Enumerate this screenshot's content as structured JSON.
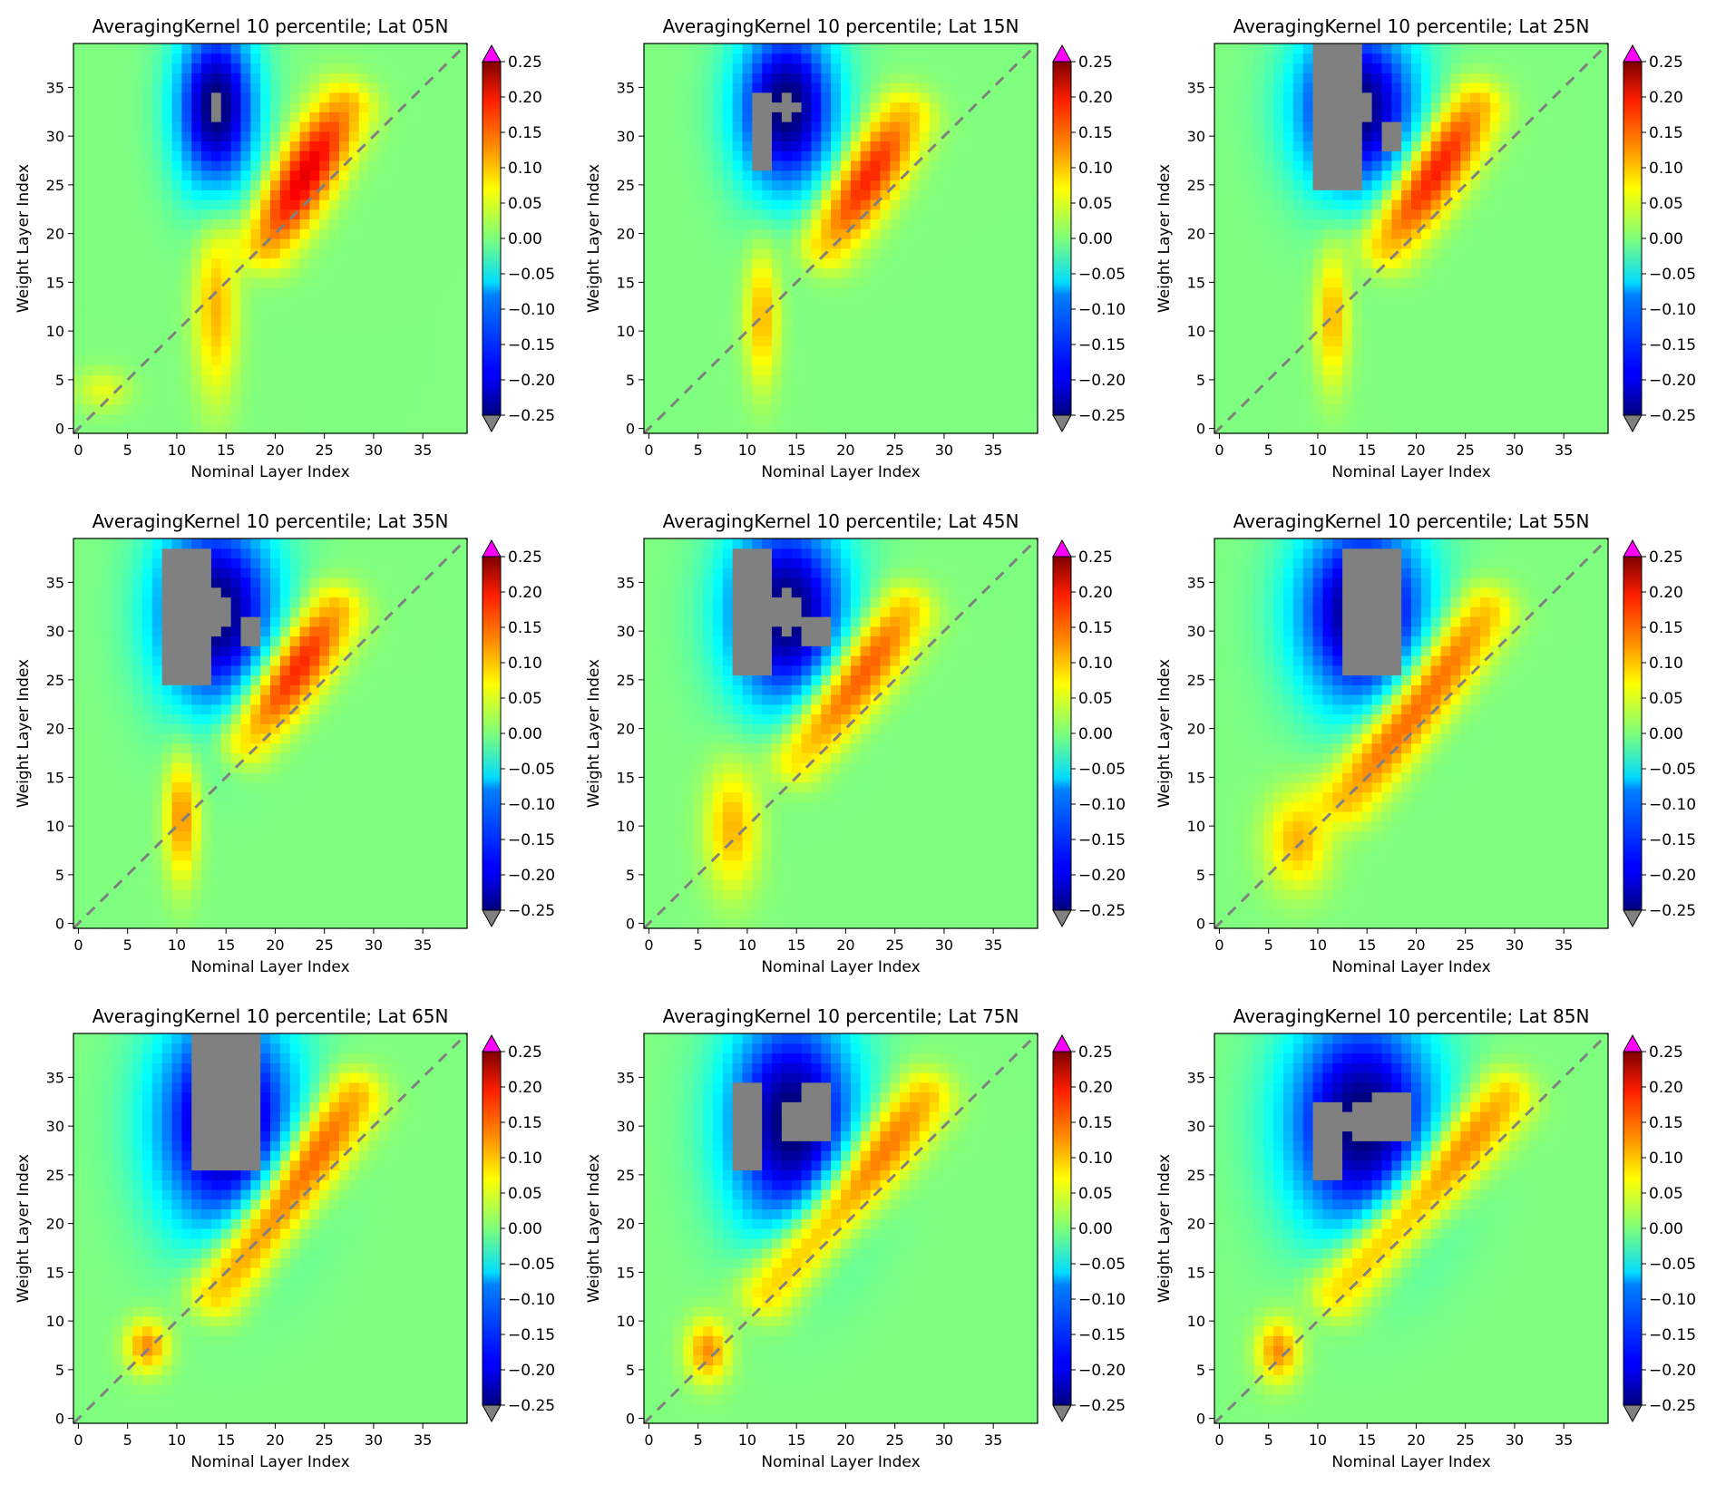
{
  "chart_data": [
    {
      "type": "heatmap",
      "title": "AveragingKernel 10 percentile; Lat 05N",
      "xlabel": "Nominal Layer Index",
      "ylabel": "Weight Layer Index",
      "x_range": [
        0,
        39
      ],
      "y_range": [
        0,
        39
      ],
      "xticks": [
        0,
        5,
        10,
        15,
        20,
        25,
        30,
        35
      ],
      "yticks": [
        0,
        5,
        10,
        15,
        20,
        25,
        30,
        35
      ],
      "colorbar": {
        "range": [
          -0.25,
          0.25
        ],
        "ticks": [
          "0.25",
          "0.20",
          "0.15",
          "0.10",
          "0.05",
          "0.00",
          "−0.05",
          "−0.10",
          "−0.15",
          "−0.20",
          "−0.25"
        ],
        "colormap": "jet",
        "over_color": "#ff00ff",
        "under_color": "#808080"
      },
      "diagonal_reference": "dashed gray y = x",
      "features": [
        {
          "kind": "positive_band",
          "x": [
            19,
            27
          ],
          "y": [
            19,
            33
          ],
          "peak": 0.2
        },
        {
          "kind": "positive_blob",
          "x": [
            12,
            16
          ],
          "y": [
            4,
            21
          ],
          "peak": 0.1
        },
        {
          "kind": "positive_blob",
          "x": [
            0,
            5
          ],
          "y": [
            2,
            6
          ],
          "peak": 0.05
        },
        {
          "kind": "negative_region",
          "x": [
            10,
            18
          ],
          "y": [
            23,
            39
          ],
          "min": -0.25
        }
      ]
    },
    {
      "type": "heatmap",
      "title": "AveragingKernel 10 percentile; Lat 15N",
      "xlabel": "Nominal Layer Index",
      "ylabel": "Weight Layer Index",
      "x_range": [
        0,
        39
      ],
      "y_range": [
        0,
        39
      ],
      "xticks": [
        0,
        5,
        10,
        15,
        20,
        25,
        30,
        35
      ],
      "yticks": [
        0,
        5,
        10,
        15,
        20,
        25,
        30,
        35
      ],
      "colorbar": {
        "range": [
          -0.25,
          0.25
        ],
        "ticks": [
          "0.25",
          "0.20",
          "0.15",
          "0.10",
          "0.05",
          "0.00",
          "−0.05",
          "−0.10",
          "−0.15",
          "−0.20",
          "−0.25"
        ],
        "colormap": "jet",
        "over_color": "#ff00ff",
        "under_color": "#808080"
      },
      "diagonal_reference": "dashed gray y = x",
      "features": [
        {
          "kind": "positive_band",
          "x": [
            18,
            26
          ],
          "y": [
            19,
            32
          ],
          "peak": 0.18
        },
        {
          "kind": "positive_blob",
          "x": [
            10,
            13
          ],
          "y": [
            5,
            18
          ],
          "peak": 0.1
        },
        {
          "kind": "negative_region",
          "x": [
            9,
            19
          ],
          "y": [
            23,
            39
          ],
          "min": -0.25
        },
        {
          "kind": "out_of_range_low",
          "x": [
            11,
            12
          ],
          "y": [
            27,
            34
          ]
        }
      ]
    },
    {
      "type": "heatmap",
      "title": "AveragingKernel 10 percentile; Lat 25N",
      "xlabel": "Nominal Layer Index",
      "ylabel": "Weight Layer Index",
      "x_range": [
        0,
        39
      ],
      "y_range": [
        0,
        39
      ],
      "xticks": [
        0,
        5,
        10,
        15,
        20,
        25,
        30,
        35
      ],
      "yticks": [
        0,
        5,
        10,
        15,
        20,
        25,
        30,
        35
      ],
      "colorbar": {
        "range": [
          -0.25,
          0.25
        ],
        "ticks": [
          "0.25",
          "0.20",
          "0.15",
          "0.10",
          "0.05",
          "0.00",
          "−0.05",
          "−0.10",
          "−0.15",
          "−0.20",
          "−0.25"
        ],
        "colormap": "jet",
        "over_color": "#ff00ff",
        "under_color": "#808080"
      },
      "diagonal_reference": "dashed gray y = x",
      "features": [
        {
          "kind": "positive_band",
          "x": [
            17,
            26
          ],
          "y": [
            19,
            33
          ],
          "peak": 0.2
        },
        {
          "kind": "positive_blob",
          "x": [
            10,
            13
          ],
          "y": [
            5,
            18
          ],
          "peak": 0.1
        },
        {
          "kind": "negative_region",
          "x": [
            8,
            20
          ],
          "y": [
            23,
            39
          ],
          "min": -0.25
        },
        {
          "kind": "out_of_range_low",
          "x": [
            10,
            14
          ],
          "y": [
            25,
            39
          ]
        },
        {
          "kind": "out_of_range_low",
          "x": [
            17,
            18
          ],
          "y": [
            29,
            31
          ]
        }
      ]
    },
    {
      "type": "heatmap",
      "title": "AveragingKernel 10 percentile; Lat 35N",
      "xlabel": "Nominal Layer Index",
      "ylabel": "Weight Layer Index",
      "x_range": [
        0,
        39
      ],
      "y_range": [
        0,
        39
      ],
      "xticks": [
        0,
        5,
        10,
        15,
        20,
        25,
        30,
        35
      ],
      "yticks": [
        0,
        5,
        10,
        15,
        20,
        25,
        30,
        35
      ],
      "colorbar": {
        "range": [
          -0.25,
          0.25
        ],
        "ticks": [
          "0.25",
          "0.20",
          "0.15",
          "0.10",
          "0.05",
          "0.00",
          "−0.05",
          "−0.10",
          "−0.15",
          "−0.20",
          "−0.25"
        ],
        "colormap": "jet",
        "over_color": "#ff00ff",
        "under_color": "#808080"
      },
      "diagonal_reference": "dashed gray y = x",
      "features": [
        {
          "kind": "positive_band",
          "x": [
            17,
            26
          ],
          "y": [
            19,
            32
          ],
          "peak": 0.2
        },
        {
          "kind": "positive_blob",
          "x": [
            9,
            12
          ],
          "y": [
            5,
            17
          ],
          "peak": 0.12
        },
        {
          "kind": "negative_region",
          "x": [
            8,
            20
          ],
          "y": [
            21,
            39
          ],
          "min": -0.25
        },
        {
          "kind": "out_of_range_low",
          "x": [
            9,
            13
          ],
          "y": [
            25,
            38
          ]
        },
        {
          "kind": "out_of_range_low",
          "x": [
            17,
            18
          ],
          "y": [
            29,
            31
          ]
        }
      ]
    },
    {
      "type": "heatmap",
      "title": "AveragingKernel 10 percentile; Lat 45N",
      "xlabel": "Nominal Layer Index",
      "ylabel": "Weight Layer Index",
      "x_range": [
        0,
        39
      ],
      "y_range": [
        0,
        39
      ],
      "xticks": [
        0,
        5,
        10,
        15,
        20,
        25,
        30,
        35
      ],
      "yticks": [
        0,
        5,
        10,
        15,
        20,
        25,
        30,
        35
      ],
      "colorbar": {
        "range": [
          -0.25,
          0.25
        ],
        "ticks": [
          "0.25",
          "0.20",
          "0.15",
          "0.10",
          "0.05",
          "0.00",
          "−0.05",
          "−0.10",
          "−0.15",
          "−0.20",
          "−0.25"
        ],
        "colormap": "jet",
        "over_color": "#ff00ff",
        "under_color": "#808080"
      },
      "diagonal_reference": "dashed gray y = x",
      "features": [
        {
          "kind": "positive_band",
          "x": [
            15,
            26
          ],
          "y": [
            17,
            32
          ],
          "peak": 0.18
        },
        {
          "kind": "positive_blob",
          "x": [
            6,
            11
          ],
          "y": [
            4,
            16
          ],
          "peak": 0.1
        },
        {
          "kind": "negative_region",
          "x": [
            8,
            20
          ],
          "y": [
            21,
            39
          ],
          "min": -0.25
        },
        {
          "kind": "out_of_range_low",
          "x": [
            9,
            12
          ],
          "y": [
            26,
            38
          ]
        },
        {
          "kind": "out_of_range_low",
          "x": [
            16,
            18
          ],
          "y": [
            29,
            31
          ]
        }
      ]
    },
    {
      "type": "heatmap",
      "title": "AveragingKernel 10 percentile; Lat 55N",
      "xlabel": "Nominal Layer Index",
      "ylabel": "Weight Layer Index",
      "x_range": [
        0,
        39
      ],
      "y_range": [
        0,
        39
      ],
      "xticks": [
        0,
        5,
        10,
        15,
        20,
        25,
        30,
        35
      ],
      "yticks": [
        0,
        5,
        10,
        15,
        20,
        25,
        30,
        35
      ],
      "colorbar": {
        "range": [
          -0.25,
          0.25
        ],
        "ticks": [
          "0.25",
          "0.20",
          "0.15",
          "0.10",
          "0.05",
          "0.00",
          "−0.05",
          "−0.10",
          "−0.15",
          "−0.20",
          "−0.25"
        ],
        "colormap": "jet",
        "over_color": "#ff00ff",
        "under_color": "#808080"
      },
      "diagonal_reference": "dashed gray y = x",
      "features": [
        {
          "kind": "positive_band",
          "x": [
            13,
            27
          ],
          "y": [
            13,
            32
          ],
          "peak": 0.18
        },
        {
          "kind": "positive_blob",
          "x": [
            5,
            11
          ],
          "y": [
            4,
            13
          ],
          "peak": 0.1
        },
        {
          "kind": "negative_region",
          "x": [
            8,
            21
          ],
          "y": [
            21,
            39
          ],
          "min": -0.25
        },
        {
          "kind": "out_of_range_low",
          "x": [
            13,
            18
          ],
          "y": [
            26,
            38
          ]
        }
      ]
    },
    {
      "type": "heatmap",
      "title": "AveragingKernel 10 percentile; Lat 65N",
      "xlabel": "Nominal Layer Index",
      "ylabel": "Weight Layer Index",
      "x_range": [
        0,
        39
      ],
      "y_range": [
        0,
        39
      ],
      "xticks": [
        0,
        5,
        10,
        15,
        20,
        25,
        30,
        35
      ],
      "yticks": [
        0,
        5,
        10,
        15,
        20,
        25,
        30,
        35
      ],
      "colorbar": {
        "range": [
          -0.25,
          0.25
        ],
        "ticks": [
          "0.25",
          "0.20",
          "0.15",
          "0.10",
          "0.05",
          "0.00",
          "−0.05",
          "−0.10",
          "−0.15",
          "−0.20",
          "−0.25"
        ],
        "colormap": "jet",
        "over_color": "#ff00ff",
        "under_color": "#808080"
      },
      "diagonal_reference": "dashed gray y = x",
      "features": [
        {
          "kind": "positive_band",
          "x": [
            14,
            28
          ],
          "y": [
            13,
            33
          ],
          "peak": 0.2
        },
        {
          "kind": "positive_blob",
          "x": [
            5,
            9
          ],
          "y": [
            5,
            10
          ],
          "peak": 0.12
        },
        {
          "kind": "negative_region",
          "x": [
            8,
            22
          ],
          "y": [
            18,
            39
          ],
          "min": -0.25
        },
        {
          "kind": "out_of_range_low",
          "x": [
            12,
            18
          ],
          "y": [
            26,
            39
          ]
        }
      ]
    },
    {
      "type": "heatmap",
      "title": "AveragingKernel 10 percentile; Lat 75N",
      "xlabel": "Nominal Layer Index",
      "ylabel": "Weight Layer Index",
      "x_range": [
        0,
        39
      ],
      "y_range": [
        0,
        39
      ],
      "xticks": [
        0,
        5,
        10,
        15,
        20,
        25,
        30,
        35
      ],
      "yticks": [
        0,
        5,
        10,
        15,
        20,
        25,
        30,
        35
      ],
      "colorbar": {
        "range": [
          -0.25,
          0.25
        ],
        "ticks": [
          "0.25",
          "0.20",
          "0.15",
          "0.10",
          "0.05",
          "0.00",
          "−0.05",
          "−0.10",
          "−0.15",
          "−0.20",
          "−0.25"
        ],
        "colormap": "jet",
        "over_color": "#ff00ff",
        "under_color": "#808080"
      },
      "diagonal_reference": "dashed gray y = x",
      "features": [
        {
          "kind": "positive_band",
          "x": [
            12,
            28
          ],
          "y": [
            13,
            33
          ],
          "peak": 0.18
        },
        {
          "kind": "positive_blob",
          "x": [
            4,
            8
          ],
          "y": [
            4,
            10
          ],
          "peak": 0.12
        },
        {
          "kind": "negative_region",
          "x": [
            8,
            21
          ],
          "y": [
            18,
            39
          ],
          "min": -0.25
        },
        {
          "kind": "out_of_range_low",
          "x": [
            9,
            11
          ],
          "y": [
            26,
            34
          ]
        },
        {
          "kind": "out_of_range_low",
          "x": [
            16,
            18
          ],
          "y": [
            29,
            34
          ]
        }
      ]
    },
    {
      "type": "heatmap",
      "title": "AveragingKernel 10 percentile; Lat 85N",
      "xlabel": "Nominal Layer Index",
      "ylabel": "Weight Layer Index",
      "x_range": [
        0,
        39
      ],
      "y_range": [
        0,
        39
      ],
      "xticks": [
        0,
        5,
        10,
        15,
        20,
        25,
        30,
        35
      ],
      "yticks": [
        0,
        5,
        10,
        15,
        20,
        25,
        30,
        35
      ],
      "colorbar": {
        "range": [
          -0.25,
          0.25
        ],
        "ticks": [
          "0.25",
          "0.20",
          "0.15",
          "0.10",
          "0.05",
          "0.00",
          "−0.05",
          "−0.10",
          "−0.15",
          "−0.20",
          "−0.25"
        ],
        "colormap": "jet",
        "over_color": "#ff00ff",
        "under_color": "#808080"
      },
      "diagonal_reference": "dashed gray y = x",
      "features": [
        {
          "kind": "positive_band",
          "x": [
            12,
            29
          ],
          "y": [
            13,
            33
          ],
          "peak": 0.18
        },
        {
          "kind": "positive_blob",
          "x": [
            4,
            8
          ],
          "y": [
            4,
            10
          ],
          "peak": 0.12
        },
        {
          "kind": "negative_region",
          "x": [
            7,
            22
          ],
          "y": [
            18,
            39
          ],
          "min": -0.25
        },
        {
          "kind": "out_of_range_low",
          "x": [
            10,
            12
          ],
          "y": [
            25,
            32
          ]
        },
        {
          "kind": "out_of_range_low",
          "x": [
            16,
            19
          ],
          "y": [
            29,
            33
          ]
        }
      ]
    }
  ]
}
